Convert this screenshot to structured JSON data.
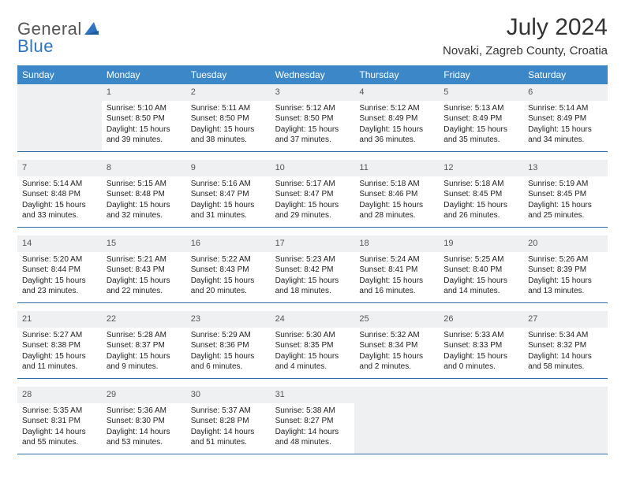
{
  "brand": {
    "line1": "General",
    "line2": "Blue"
  },
  "title": "July 2024",
  "subtitle": "Novaki, Zagreb County, Croatia",
  "colors": {
    "header_bg": "#3b87c8",
    "header_fg": "#ffffff",
    "daynum_bg": "#eef0f1",
    "cell_border": "#2f6aa5",
    "brand_gray": "#555555",
    "brand_blue": "#2f74c1"
  },
  "weekdays": [
    "Sunday",
    "Monday",
    "Tuesday",
    "Wednesday",
    "Thursday",
    "Friday",
    "Saturday"
  ],
  "weeks": [
    [
      {
        "day": "",
        "lines": []
      },
      {
        "day": "1",
        "lines": [
          "Sunrise: 5:10 AM",
          "Sunset: 8:50 PM",
          "Daylight: 15 hours and 39 minutes."
        ]
      },
      {
        "day": "2",
        "lines": [
          "Sunrise: 5:11 AM",
          "Sunset: 8:50 PM",
          "Daylight: 15 hours and 38 minutes."
        ]
      },
      {
        "day": "3",
        "lines": [
          "Sunrise: 5:12 AM",
          "Sunset: 8:50 PM",
          "Daylight: 15 hours and 37 minutes."
        ]
      },
      {
        "day": "4",
        "lines": [
          "Sunrise: 5:12 AM",
          "Sunset: 8:49 PM",
          "Daylight: 15 hours and 36 minutes."
        ]
      },
      {
        "day": "5",
        "lines": [
          "Sunrise: 5:13 AM",
          "Sunset: 8:49 PM",
          "Daylight: 15 hours and 35 minutes."
        ]
      },
      {
        "day": "6",
        "lines": [
          "Sunrise: 5:14 AM",
          "Sunset: 8:49 PM",
          "Daylight: 15 hours and 34 minutes."
        ]
      }
    ],
    [
      {
        "day": "7",
        "lines": [
          "Sunrise: 5:14 AM",
          "Sunset: 8:48 PM",
          "Daylight: 15 hours and 33 minutes."
        ]
      },
      {
        "day": "8",
        "lines": [
          "Sunrise: 5:15 AM",
          "Sunset: 8:48 PM",
          "Daylight: 15 hours and 32 minutes."
        ]
      },
      {
        "day": "9",
        "lines": [
          "Sunrise: 5:16 AM",
          "Sunset: 8:47 PM",
          "Daylight: 15 hours and 31 minutes."
        ]
      },
      {
        "day": "10",
        "lines": [
          "Sunrise: 5:17 AM",
          "Sunset: 8:47 PM",
          "Daylight: 15 hours and 29 minutes."
        ]
      },
      {
        "day": "11",
        "lines": [
          "Sunrise: 5:18 AM",
          "Sunset: 8:46 PM",
          "Daylight: 15 hours and 28 minutes."
        ]
      },
      {
        "day": "12",
        "lines": [
          "Sunrise: 5:18 AM",
          "Sunset: 8:45 PM",
          "Daylight: 15 hours and 26 minutes."
        ]
      },
      {
        "day": "13",
        "lines": [
          "Sunrise: 5:19 AM",
          "Sunset: 8:45 PM",
          "Daylight: 15 hours and 25 minutes."
        ]
      }
    ],
    [
      {
        "day": "14",
        "lines": [
          "Sunrise: 5:20 AM",
          "Sunset: 8:44 PM",
          "Daylight: 15 hours and 23 minutes."
        ]
      },
      {
        "day": "15",
        "lines": [
          "Sunrise: 5:21 AM",
          "Sunset: 8:43 PM",
          "Daylight: 15 hours and 22 minutes."
        ]
      },
      {
        "day": "16",
        "lines": [
          "Sunrise: 5:22 AM",
          "Sunset: 8:43 PM",
          "Daylight: 15 hours and 20 minutes."
        ]
      },
      {
        "day": "17",
        "lines": [
          "Sunrise: 5:23 AM",
          "Sunset: 8:42 PM",
          "Daylight: 15 hours and 18 minutes."
        ]
      },
      {
        "day": "18",
        "lines": [
          "Sunrise: 5:24 AM",
          "Sunset: 8:41 PM",
          "Daylight: 15 hours and 16 minutes."
        ]
      },
      {
        "day": "19",
        "lines": [
          "Sunrise: 5:25 AM",
          "Sunset: 8:40 PM",
          "Daylight: 15 hours and 14 minutes."
        ]
      },
      {
        "day": "20",
        "lines": [
          "Sunrise: 5:26 AM",
          "Sunset: 8:39 PM",
          "Daylight: 15 hours and 13 minutes."
        ]
      }
    ],
    [
      {
        "day": "21",
        "lines": [
          "Sunrise: 5:27 AM",
          "Sunset: 8:38 PM",
          "Daylight: 15 hours and 11 minutes."
        ]
      },
      {
        "day": "22",
        "lines": [
          "Sunrise: 5:28 AM",
          "Sunset: 8:37 PM",
          "Daylight: 15 hours and 9 minutes."
        ]
      },
      {
        "day": "23",
        "lines": [
          "Sunrise: 5:29 AM",
          "Sunset: 8:36 PM",
          "Daylight: 15 hours and 6 minutes."
        ]
      },
      {
        "day": "24",
        "lines": [
          "Sunrise: 5:30 AM",
          "Sunset: 8:35 PM",
          "Daylight: 15 hours and 4 minutes."
        ]
      },
      {
        "day": "25",
        "lines": [
          "Sunrise: 5:32 AM",
          "Sunset: 8:34 PM",
          "Daylight: 15 hours and 2 minutes."
        ]
      },
      {
        "day": "26",
        "lines": [
          "Sunrise: 5:33 AM",
          "Sunset: 8:33 PM",
          "Daylight: 15 hours and 0 minutes."
        ]
      },
      {
        "day": "27",
        "lines": [
          "Sunrise: 5:34 AM",
          "Sunset: 8:32 PM",
          "Daylight: 14 hours and 58 minutes."
        ]
      }
    ],
    [
      {
        "day": "28",
        "lines": [
          "Sunrise: 5:35 AM",
          "Sunset: 8:31 PM",
          "Daylight: 14 hours and 55 minutes."
        ]
      },
      {
        "day": "29",
        "lines": [
          "Sunrise: 5:36 AM",
          "Sunset: 8:30 PM",
          "Daylight: 14 hours and 53 minutes."
        ]
      },
      {
        "day": "30",
        "lines": [
          "Sunrise: 5:37 AM",
          "Sunset: 8:28 PM",
          "Daylight: 14 hours and 51 minutes."
        ]
      },
      {
        "day": "31",
        "lines": [
          "Sunrise: 5:38 AM",
          "Sunset: 8:27 PM",
          "Daylight: 14 hours and 48 minutes."
        ]
      },
      {
        "day": "",
        "lines": []
      },
      {
        "day": "",
        "lines": []
      },
      {
        "day": "",
        "lines": []
      }
    ]
  ]
}
